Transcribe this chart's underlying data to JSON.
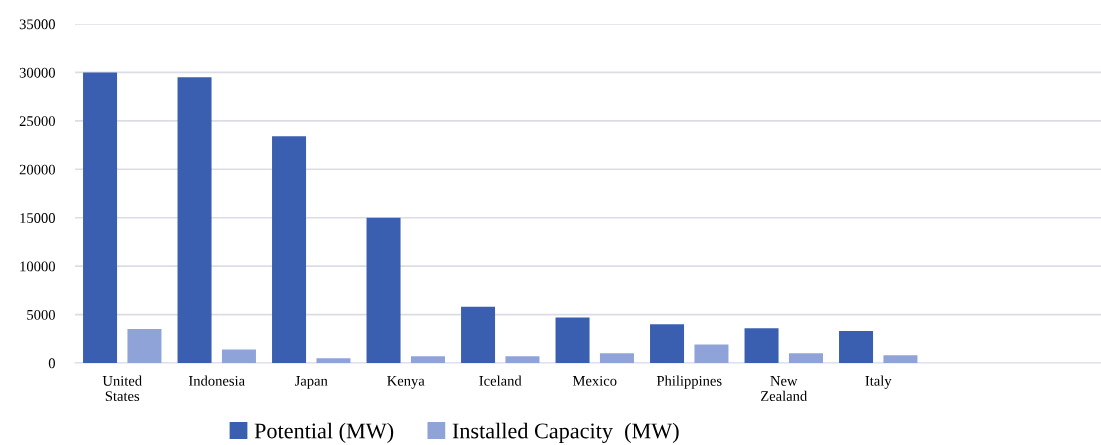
{
  "chart_data": {
    "type": "bar",
    "categories": [
      "United States",
      "Indonesia",
      "Japan",
      "Kenya",
      "Iceland",
      "Mexico",
      "Philippines",
      "New Zealand",
      "Italy",
      null,
      null
    ],
    "series": [
      {
        "name": "Potential (MW)",
        "color": "#3a5fb0",
        "values": [
          30000,
          29500,
          23400,
          15000,
          5800,
          4700,
          4000,
          3600,
          3300,
          null,
          null
        ]
      },
      {
        "name": "Installed Capacity  (MW)",
        "color": "#8fa3d8",
        "values": [
          3500,
          1400,
          500,
          700,
          700,
          1000,
          1900,
          1000,
          800,
          null,
          null
        ]
      }
    ],
    "ylim": [
      0,
      35000
    ],
    "yticks": [
      0,
      5000,
      10000,
      15000,
      20000,
      25000,
      30000,
      35000
    ],
    "grid": "y",
    "legend": "bottom"
  }
}
